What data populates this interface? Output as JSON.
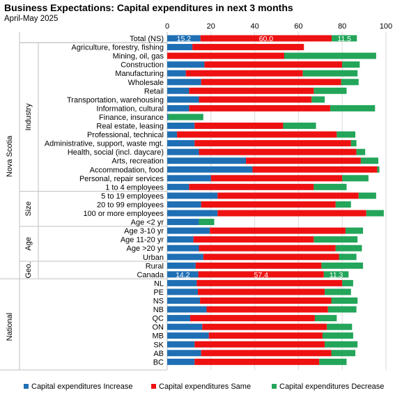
{
  "title": "Business Expectations: Capital expenditures in next 3 months",
  "subtitle": "April-May 2025",
  "colors": {
    "increase": "#1f6fb4",
    "same": "#ee1111",
    "decrease": "#23a55a"
  },
  "legend": [
    {
      "label": "Capital expenditures Increase",
      "color": "#1f6fb4"
    },
    {
      "label": "Capital expenditures Same",
      "color": "#ee1111"
    },
    {
      "label": "Capital expenditures Decrease",
      "color": "#23a55a"
    }
  ],
  "chart_data": {
    "type": "bar",
    "orientation": "horizontal",
    "stacked": true,
    "xlim": [
      0,
      100
    ],
    "xticks": [
      "0",
      "20",
      "40",
      "60",
      "80",
      "100"
    ],
    "grid": true,
    "legend_position": "bottom",
    "groups": [
      {
        "name": "Nova Scotia",
        "subgroups": [
          {
            "name": "",
            "start": 0,
            "end": 0
          },
          {
            "name": "Industry",
            "start": 1,
            "end": 17
          },
          {
            "name": "Size",
            "start": 18,
            "end": 21
          },
          {
            "name": "Age",
            "start": 22,
            "end": 25
          },
          {
            "name": "Geo.",
            "start": 26,
            "end": 27
          }
        ]
      },
      {
        "name": "National",
        "subgroups": [
          {
            "name": "",
            "start": 28,
            "end": 38
          }
        ]
      }
    ],
    "categories": [
      "Total (NS)",
      "Agriculture, forestry, fishing",
      "Mining, oil, gas",
      "Construction",
      "Manufacturing",
      "Wholesale",
      "Retail",
      "Transportation, warehousing",
      "Information, cultural",
      "Finance, insurance",
      "Real estate, leasing",
      "Professional, technical",
      "Administrative, support, waste mgt.",
      "Health, social (incl. daycare)",
      "Arts, recreation",
      "Accommodation, food",
      "Personal, repair services",
      "1 to 4 employees",
      "5 to 19 employees",
      "20 to 99 employees",
      "100 or more employees",
      "Age <2 yr",
      "Age 3-10 yr",
      "Age 11-20 yr",
      "Age >20 yr",
      "Urban",
      "Rural",
      "Canada",
      "NL",
      "PE",
      "NS",
      "NB",
      "QC",
      "ON",
      "MB",
      "SK",
      "AB",
      "BC"
    ],
    "series": [
      {
        "name": "Capital expenditures Increase",
        "values": [
          15.2,
          11.5,
          0,
          17,
          8.5,
          15.5,
          10,
          14.5,
          10,
          0.5,
          12.5,
          4.5,
          12.5,
          14.5,
          36,
          39,
          20,
          10,
          23,
          15.5,
          23,
          14.5,
          19.5,
          12,
          14.5,
          16.5,
          13,
          14.2,
          13.5,
          14,
          15,
          18,
          10.5,
          16,
          19,
          12.5,
          15.5,
          12.5
        ]
      },
      {
        "name": "Capital expenditures Same",
        "values": [
          60.0,
          51,
          53.5,
          63,
          53.5,
          64,
          57,
          51.5,
          64.5,
          0,
          40.5,
          73,
          71.5,
          72,
          52.5,
          57,
          60,
          57,
          64.5,
          61.5,
          68,
          0,
          62,
          55,
          62.5,
          62,
          57.5,
          57.4,
          66.5,
          58,
          60,
          55.5,
          57,
          57,
          52,
          59.5,
          59.5,
          57
        ]
      },
      {
        "name": "Capital expenditures Decrease",
        "values": [
          11.5,
          0,
          42,
          8,
          25,
          8,
          15,
          6,
          20.5,
          16,
          15,
          8.5,
          2.5,
          4,
          8,
          1,
          12,
          15,
          8,
          7,
          8,
          7,
          8,
          20,
          12,
          8,
          19,
          11.3,
          5,
          12,
          12,
          13,
          10,
          11.5,
          14,
          15,
          11,
          12.5
        ]
      }
    ],
    "data_labels": [
      {
        "category": "Total (NS)",
        "values": [
          "15.2",
          "60.0",
          "11.5"
        ]
      },
      {
        "category": "Canada",
        "values": [
          "14.2",
          "57.4",
          "11.3"
        ]
      }
    ]
  }
}
